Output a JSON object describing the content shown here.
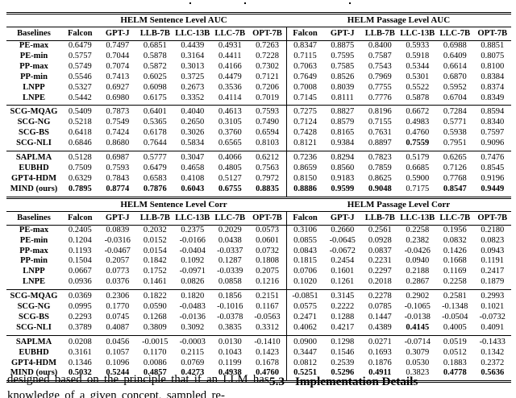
{
  "tables": [
    {
      "group_headers": [
        "HELM Sentence Level AUC",
        "HELM Passage Level AUC"
      ],
      "stub_header": "Baselines",
      "columns": [
        "Falcon",
        "GPT-J",
        "LLB-7B",
        "LLC-13B",
        "LLC-7B",
        "OPT-7B",
        "Falcon",
        "GPT-J",
        "LLB-7B",
        "LLC-13B",
        "LLC-7B",
        "OPT-7B"
      ],
      "groups": [
        {
          "rows": [
            {
              "label": "PE-max",
              "values": [
                "0.6479",
                "0.7497",
                "0.6851",
                "0.4439",
                "0.4931",
                "0.7263",
                "0.8347",
                "0.8875",
                "0.8400",
                "0.5933",
                "0.6988",
                "0.8851"
              ],
              "bold": []
            },
            {
              "label": "PE-min",
              "values": [
                "0.5757",
                "0.7044",
                "0.5878",
                "0.3164",
                "0.4411",
                "0.7228",
                "0.7115",
                "0.7595",
                "0.7587",
                "0.5918",
                "0.6409",
                "0.8075"
              ],
              "bold": []
            },
            {
              "label": "PP-max",
              "values": [
                "0.5749",
                "0.7074",
                "0.5872",
                "0.3013",
                "0.4166",
                "0.7302",
                "0.7063",
                "0.7585",
                "0.7543",
                "0.5344",
                "0.6614",
                "0.8100"
              ],
              "bold": []
            },
            {
              "label": "PP-min",
              "values": [
                "0.5546",
                "0.7413",
                "0.6025",
                "0.3725",
                "0.4479",
                "0.7121",
                "0.7649",
                "0.8526",
                "0.7969",
                "0.5301",
                "0.6870",
                "0.8384"
              ],
              "bold": []
            },
            {
              "label": "LNPP",
              "values": [
                "0.5327",
                "0.6927",
                "0.6098",
                "0.2673",
                "0.3536",
                "0.7206",
                "0.7008",
                "0.8039",
                "0.7755",
                "0.5522",
                "0.5952",
                "0.8374"
              ],
              "bold": []
            },
            {
              "label": "LNPE",
              "values": [
                "0.5442",
                "0.6980",
                "0.6175",
                "0.3352",
                "0.4114",
                "0.7019",
                "0.7145",
                "0.8111",
                "0.7776",
                "0.5878",
                "0.6704",
                "0.8349"
              ],
              "bold": []
            }
          ]
        },
        {
          "rows": [
            {
              "label": "SCG-MQAG",
              "values": [
                "0.5409",
                "0.7873",
                "0.6401",
                "0.4040",
                "0.4613",
                "0.7593",
                "0.7275",
                "0.8827",
                "0.8196",
                "0.6672",
                "0.7284",
                "0.8594"
              ],
              "bold": []
            },
            {
              "label": "SCG-NG",
              "values": [
                "0.5218",
                "0.7549",
                "0.5365",
                "0.2650",
                "0.3105",
                "0.7490",
                "0.7124",
                "0.8579",
                "0.7155",
                "0.4983",
                "0.5771",
                "0.8340"
              ],
              "bold": []
            },
            {
              "label": "SCG-BS",
              "values": [
                "0.6418",
                "0.7424",
                "0.6178",
                "0.3026",
                "0.3760",
                "0.6594",
                "0.7428",
                "0.8165",
                "0.7631",
                "0.4760",
                "0.5938",
                "0.7597"
              ],
              "bold": []
            },
            {
              "label": "SCG-NLI",
              "values": [
                "0.6846",
                "0.8680",
                "0.7644",
                "0.5834",
                "0.6565",
                "0.8103",
                "0.8121",
                "0.9384",
                "0.8897",
                "0.7559",
                "0.7951",
                "0.9096"
              ],
              "bold": [
                9
              ]
            }
          ]
        },
        {
          "rows": [
            {
              "label": "SAPLMA",
              "values": [
                "0.5128",
                "0.6987",
                "0.5777",
                "0.3047",
                "0.4066",
                "0.6212",
                "0.7236",
                "0.8294",
                "0.7823",
                "0.5179",
                "0.6265",
                "0.7476"
              ],
              "bold": []
            },
            {
              "label": "EUBHD",
              "values": [
                "0.7509",
                "0.7593",
                "0.6479",
                "0.4658",
                "0.4805",
                "0.7563",
                "0.8659",
                "0.8560",
                "0.7859",
                "0.6685",
                "0.7126",
                "0.8545"
              ],
              "bold": []
            },
            {
              "label": "GPT4-HDM",
              "values": [
                "0.6329",
                "0.7843",
                "0.6583",
                "0.4108",
                "0.5127",
                "0.7972",
                "0.8150",
                "0.9183",
                "0.8625",
                "0.5900",
                "0.7768",
                "0.9196"
              ],
              "bold": []
            },
            {
              "label": "MIND (ours)",
              "values": [
                "0.7895",
                "0.8774",
                "0.7876",
                "0.6043",
                "0.6755",
                "0.8835",
                "0.8886",
                "0.9599",
                "0.9048",
                "0.7175",
                "0.8547",
                "0.9449"
              ],
              "bold": [
                0,
                1,
                2,
                3,
                4,
                5,
                6,
                7,
                8,
                10,
                11
              ]
            }
          ]
        }
      ]
    },
    {
      "group_headers": [
        "HELM Sentence Level Corr",
        "HELM Passage Level Corr"
      ],
      "stub_header": "Baselines",
      "columns": [
        "Falcon",
        "GPT-J",
        "LLB-7B",
        "LLC-13B",
        "LLC-7B",
        "OPT-7B",
        "Falcon",
        "GPT-J",
        "LLB-7B",
        "LLC-13B",
        "LLC-7B",
        "OPT-7B"
      ],
      "groups": [
        {
          "rows": [
            {
              "label": "PE-max",
              "values": [
                "0.2405",
                "0.0839",
                "0.2032",
                "0.2375",
                "0.2029",
                "0.0573",
                "0.3106",
                "0.2660",
                "0.2561",
                "0.2258",
                "0.1956",
                "0.2180"
              ],
              "bold": []
            },
            {
              "label": "PE-min",
              "values": [
                "0.1204",
                "-0.0316",
                "0.0152",
                "-0.0166",
                "0.0438",
                "0.0601",
                "0.0855",
                "-0.0645",
                "0.0928",
                "0.2382",
                "0.0832",
                "0.0823"
              ],
              "bold": []
            },
            {
              "label": "PP-max",
              "values": [
                "0.1193",
                "-0.0467",
                "0.0154",
                "-0.0404",
                "-0.0337",
                "0.0732",
                "0.0843",
                "-0.0672",
                "0.0837",
                "-0.0426",
                "0.1426",
                "0.0943"
              ],
              "bold": []
            },
            {
              "label": "PP-min",
              "values": [
                "0.1504",
                "0.2057",
                "0.1842",
                "0.1092",
                "0.1287",
                "0.1808",
                "0.1815",
                "0.2454",
                "0.2231",
                "0.0940",
                "0.1668",
                "0.1191"
              ],
              "bold": []
            },
            {
              "label": "LNPP",
              "values": [
                "0.0667",
                "0.0773",
                "0.1752",
                "-0.0971",
                "-0.0339",
                "0.2075",
                "0.0706",
                "0.1601",
                "0.2297",
                "0.2188",
                "0.1169",
                "0.2417"
              ],
              "bold": []
            },
            {
              "label": "LNPE",
              "values": [
                "0.0936",
                "0.0376",
                "0.1461",
                "0.0826",
                "0.0858",
                "0.1216",
                "0.1020",
                "0.1261",
                "0.2018",
                "0.2867",
                "0.2258",
                "0.1879"
              ],
              "bold": []
            }
          ]
        },
        {
          "rows": [
            {
              "label": "SCG-MQAG",
              "values": [
                "0.0369",
                "0.2306",
                "0.1822",
                "0.1820",
                "0.1856",
                "0.2151",
                "-0.0851",
                "0.3145",
                "0.2278",
                "0.2902",
                "0.2581",
                "0.2993"
              ],
              "bold": []
            },
            {
              "label": "SCG-NG",
              "values": [
                "0.0995",
                "0.1770",
                "0.0590",
                "-0.0483",
                "-0.1016",
                "0.1167",
                "0.0575",
                "0.2222",
                "0.0785",
                "-0.1065",
                "-0.1348",
                "0.1021"
              ],
              "bold": []
            },
            {
              "label": "SCG-BS",
              "values": [
                "0.2293",
                "0.0745",
                "0.1268",
                "-0.0136",
                "-0.0378",
                "-0.0563",
                "0.2471",
                "0.1288",
                "0.1447",
                "-0.0138",
                "-0.0504",
                "-0.0732"
              ],
              "bold": []
            },
            {
              "label": "SCG-NLI",
              "values": [
                "0.3789",
                "0.4087",
                "0.3809",
                "0.3092",
                "0.3835",
                "0.3312",
                "0.4062",
                "0.4217",
                "0.4389",
                "0.4145",
                "0.4005",
                "0.4091"
              ],
              "bold": [
                9
              ]
            }
          ]
        },
        {
          "rows": [
            {
              "label": "SAPLMA",
              "values": [
                "0.0208",
                "0.0456",
                "-0.0015",
                "-0.0003",
                "0.0130",
                "-0.1410",
                "0.0900",
                "0.1298",
                "0.0271",
                "-0.0714",
                "0.0519",
                "-0.1433"
              ],
              "bold": []
            },
            {
              "label": "EUBHD",
              "values": [
                "0.3161",
                "0.1057",
                "0.1170",
                "0.2115",
                "0.1043",
                "0.1423",
                "0.3447",
                "0.1546",
                "0.1693",
                "0.3079",
                "0.0512",
                "0.1342"
              ],
              "bold": []
            },
            {
              "label": "GPT4-HDM",
              "values": [
                "0.1346",
                "0.1096",
                "0.0086",
                "0.0769",
                "0.1199",
                "0.1678",
                "0.0812",
                "0.2539",
                "0.1876",
                "0.0530",
                "0.1883",
                "0.2372"
              ],
              "bold": []
            },
            {
              "label": "MIND (ours)",
              "values": [
                "0.5032",
                "0.5244",
                "0.4857",
                "0.4273",
                "0.4938",
                "0.4760",
                "0.5251",
                "0.5296",
                "0.4911",
                "0.3823",
                "0.4778",
                "0.5636"
              ],
              "bold": [
                0,
                1,
                2,
                3,
                4,
                5,
                6,
                7,
                8,
                10,
                11
              ]
            }
          ]
        }
      ]
    }
  ],
  "body": {
    "left_line1": "designed based on the principle that if an LLM",
    "left_line2": "has knowledge of a given concept, sampled re-",
    "section_number": "5.3",
    "section_title": "Implementation Details"
  }
}
